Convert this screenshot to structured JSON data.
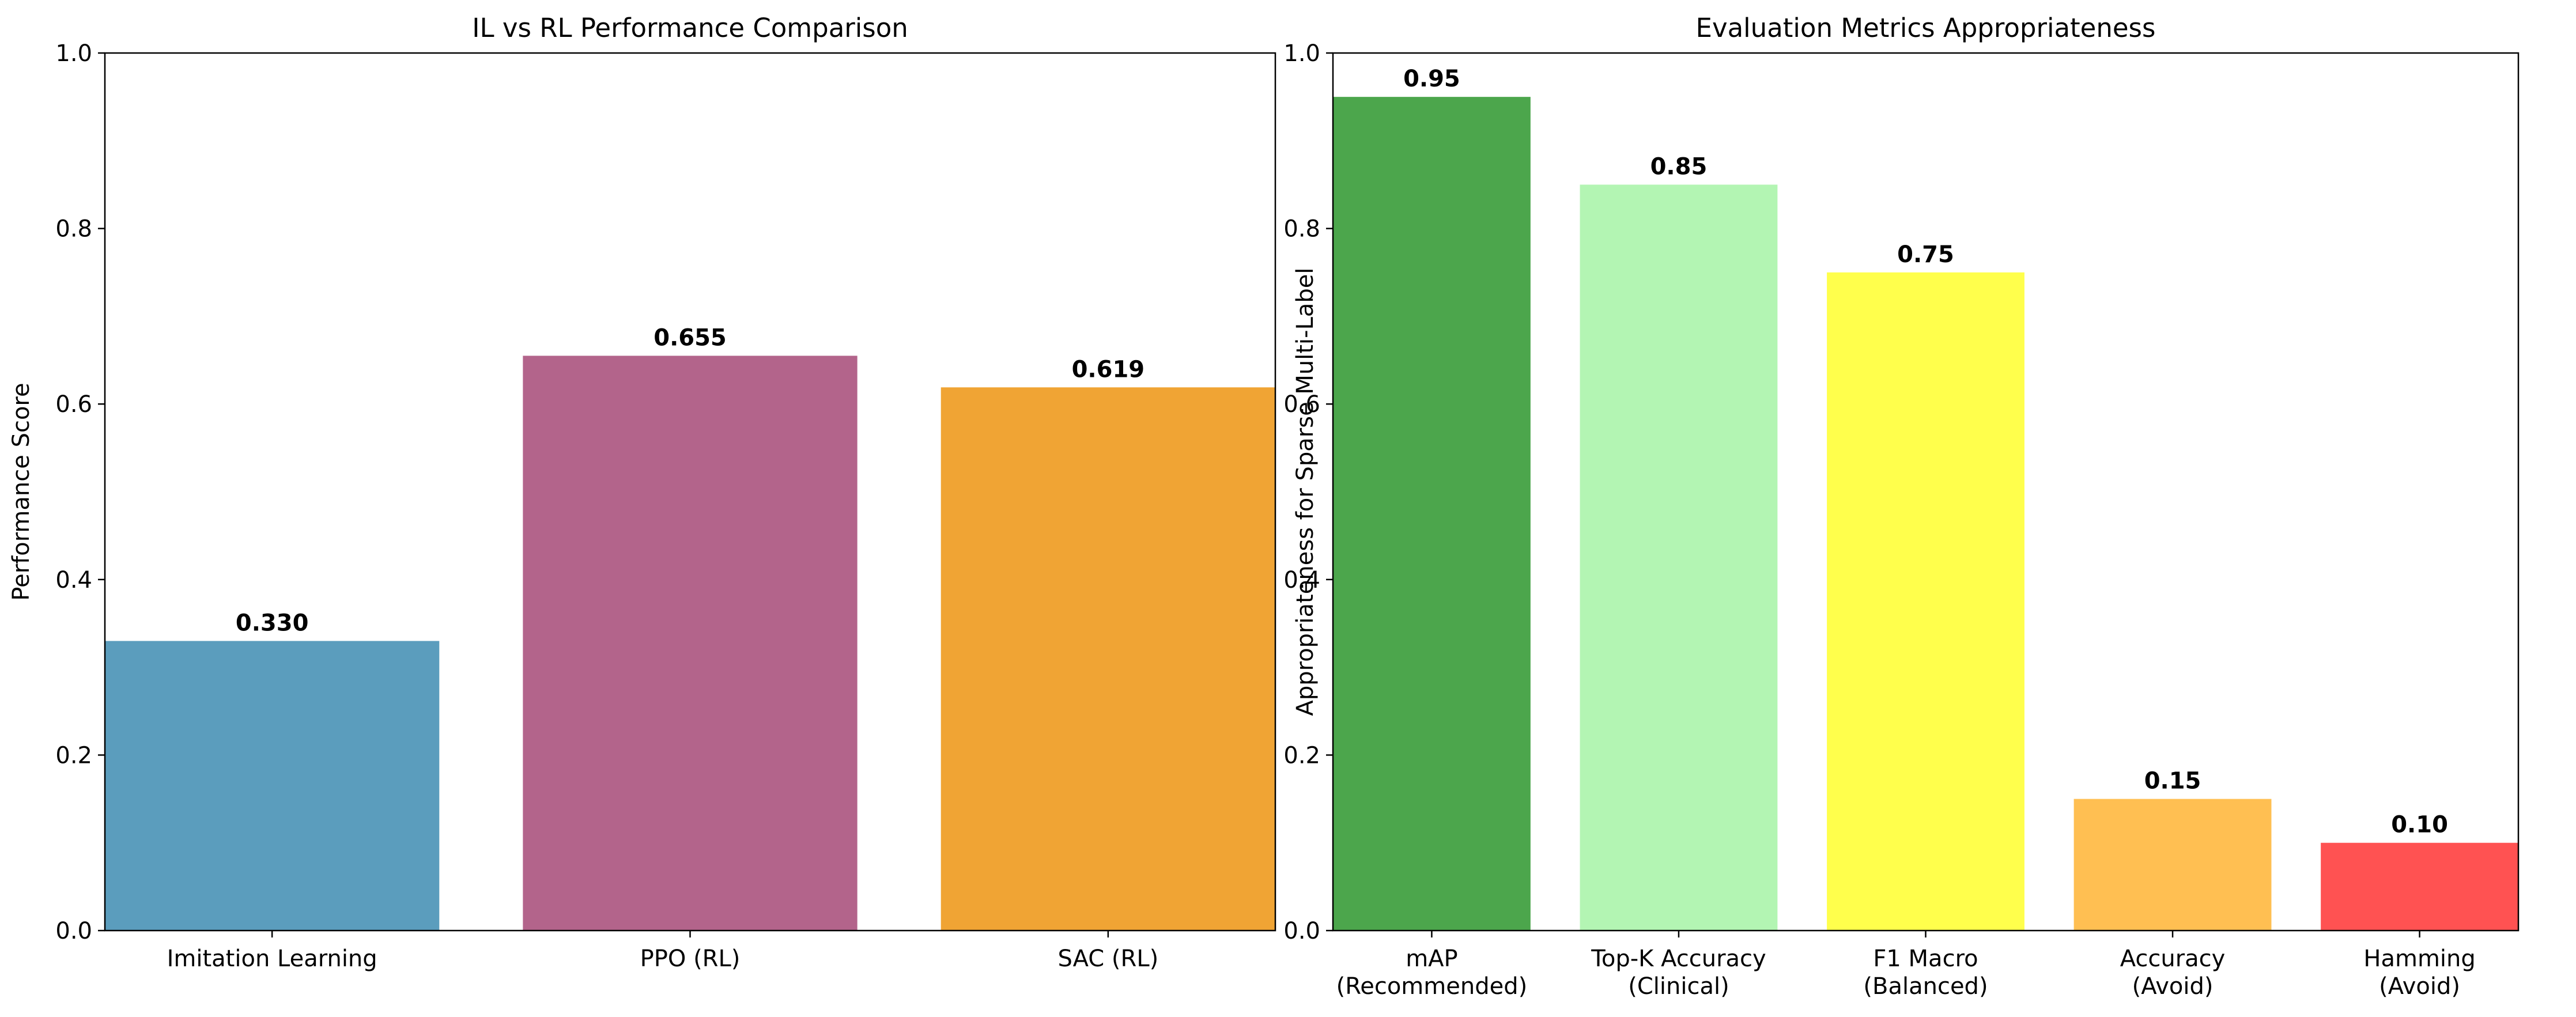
{
  "chart_data": [
    {
      "type": "bar",
      "title": "IL vs RL Performance Comparison",
      "xlabel": "",
      "ylabel": "Performance Score",
      "ylim": [
        0,
        1.0
      ],
      "yticks": [
        "0.0",
        "0.2",
        "0.4",
        "0.6",
        "0.8",
        "1.0"
      ],
      "grid": false,
      "categories": [
        [
          "Imitation Learning"
        ],
        [
          "PPO (RL)"
        ],
        [
          "SAC (RL)"
        ]
      ],
      "values": [
        0.33,
        0.655,
        0.619
      ],
      "value_labels": [
        "0.330",
        "0.655",
        "0.619"
      ],
      "colors": [
        "#5b9dbd",
        "#b3648b",
        "#f0a434"
      ]
    },
    {
      "type": "bar",
      "title": "Evaluation Metrics Appropriateness",
      "xlabel": "",
      "ylabel": "Appropriateness for Sparse Multi-Label",
      "ylim": [
        0,
        1.0
      ],
      "yticks": [
        "0.0",
        "0.2",
        "0.4",
        "0.6",
        "0.8",
        "1.0"
      ],
      "grid": false,
      "categories": [
        [
          "mAP",
          "(Recommended)"
        ],
        [
          "Top-K Accuracy",
          "(Clinical)"
        ],
        [
          "F1 Macro",
          "(Balanced)"
        ],
        [
          "Accuracy",
          "(Avoid)"
        ],
        [
          "Hamming",
          "(Avoid)"
        ]
      ],
      "values": [
        0.95,
        0.85,
        0.75,
        0.15,
        0.1
      ],
      "value_labels": [
        "0.95",
        "0.85",
        "0.75",
        "0.15",
        "0.10"
      ],
      "colors": [
        "#4ca64c",
        "#b3f5b3",
        "#ffff4c",
        "#ffbf52",
        "#ff5252"
      ]
    }
  ]
}
